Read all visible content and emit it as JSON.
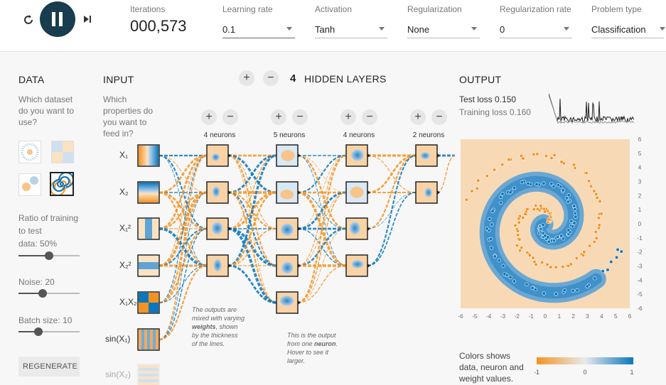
{
  "controls": {
    "iterations_label": "Iterations",
    "iterations_value": "000,573",
    "learning_rate": {
      "label": "Learning rate",
      "value": "0.1"
    },
    "activation": {
      "label": "Activation",
      "value": "Tanh"
    },
    "regularization": {
      "label": "Regularization",
      "value": "None"
    },
    "regularization_rate": {
      "label": "Regularization rate",
      "value": "0"
    },
    "problem_type": {
      "label": "Problem type",
      "value": "Classification"
    }
  },
  "data_panel": {
    "title": "DATA",
    "question": "Which dataset do you want to use?",
    "ratio_label_1": "Ratio of training",
    "ratio_label_2": "to test",
    "ratio_label_3": "data:  50%",
    "ratio_value": 0.5,
    "noise_label": "Noise:  20",
    "noise_value": 0.4,
    "batch_label": "Batch size:  10",
    "batch_value": 0.33,
    "regenerate": "REGENERATE"
  },
  "input_panel": {
    "title": "INPUT",
    "question": "Which properties do you want to feed in?",
    "features": [
      "X₁",
      "X₂",
      "X₁²",
      "X₂²",
      "X₁X₂",
      "sin(X₁)",
      "sin(X₂)"
    ]
  },
  "hidden": {
    "count": "4",
    "title": "HIDDEN LAYERS",
    "layers": [
      "4 neurons",
      "5 neurons",
      "4 neurons",
      "2 neurons"
    ]
  },
  "notes": {
    "weights_note_1": "The outputs are",
    "weights_note_2": "mixed with varying",
    "weights_note_3": "weights",
    "weights_note_4": ", shown",
    "weights_note_5": "by the thickness",
    "weights_note_6": "of the lines.",
    "neuron_note_1": "This is the output",
    "neuron_note_2": "from one ",
    "neuron_note_3": "neuron",
    "neuron_note_4": ". Hover to see it",
    "neuron_note_5": "larger."
  },
  "output": {
    "title": "OUTPUT",
    "test_loss": "Test loss 0.150",
    "training_loss": "Training loss 0.160",
    "x_ticks": [
      "-6",
      "-5",
      "-4",
      "-3",
      "-2",
      "-1",
      "0",
      "1",
      "2",
      "3",
      "4",
      "5",
      "6"
    ],
    "y_ticks": [
      "6",
      "5",
      "4",
      "3",
      "2",
      "1",
      "0",
      "-1",
      "-2",
      "-3",
      "-4",
      "-5",
      "-6"
    ],
    "legend_text_1": "Colors shows",
    "legend_text_2": "data, neuron and",
    "legend_text_3": "weight values.",
    "legend_min": "-1",
    "legend_mid": "0",
    "legend_max": "1"
  },
  "colors": {
    "orange": "#f59322",
    "blue": "#0877bd",
    "dark": "#183d4e"
  }
}
